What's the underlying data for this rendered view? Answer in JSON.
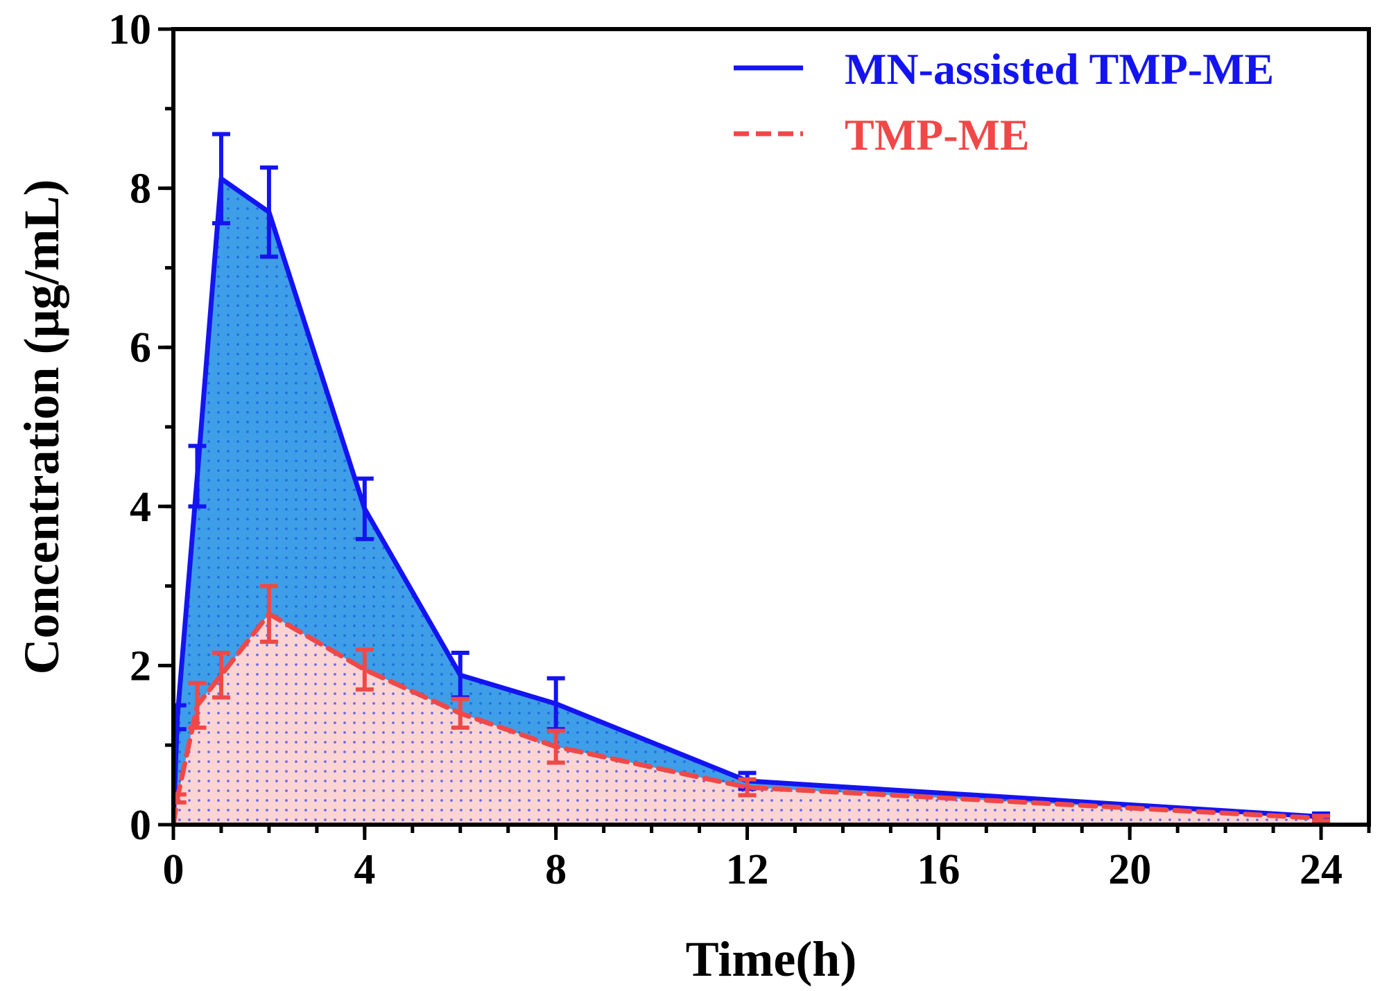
{
  "chart_data": {
    "type": "line",
    "title": "",
    "xlabel": "Time(h)",
    "ylabel": "Concentration (μg/mL)",
    "xlim": [
      0,
      25
    ],
    "ylim": [
      0,
      10
    ],
    "x_ticks": [
      0,
      4,
      8,
      12,
      16,
      20,
      24
    ],
    "x_minor_step": 1,
    "y_ticks": [
      0,
      2,
      4,
      6,
      8,
      10
    ],
    "y_minor_step": 1,
    "grid": false,
    "legend_position": "top-right",
    "series": [
      {
        "name": "MN-assisted TMP-ME",
        "color": "#1414f0",
        "fill": "#3f9ee8",
        "line_style": "solid",
        "x": [
          0,
          0.083,
          0.5,
          1,
          2,
          4,
          6,
          8,
          12,
          24
        ],
        "y": [
          0,
          1.35,
          4.38,
          8.12,
          7.7,
          3.97,
          1.88,
          1.52,
          0.55,
          0.1
        ],
        "err": [
          0,
          0.15,
          0.38,
          0.56,
          0.56,
          0.38,
          0.28,
          0.32,
          0.1,
          0.04
        ]
      },
      {
        "name": "TMP-ME",
        "color": "#f04848",
        "fill": "#fcd4d4",
        "line_style": "dashed",
        "x": [
          0,
          0.083,
          0.5,
          1,
          2,
          4,
          6,
          8,
          12,
          24
        ],
        "y": [
          0,
          0.33,
          1.5,
          1.88,
          2.65,
          1.95,
          1.4,
          0.98,
          0.47,
          0.08
        ],
        "err": [
          0,
          0.05,
          0.28,
          0.28,
          0.35,
          0.25,
          0.18,
          0.2,
          0.1,
          0.03
        ]
      }
    ]
  }
}
